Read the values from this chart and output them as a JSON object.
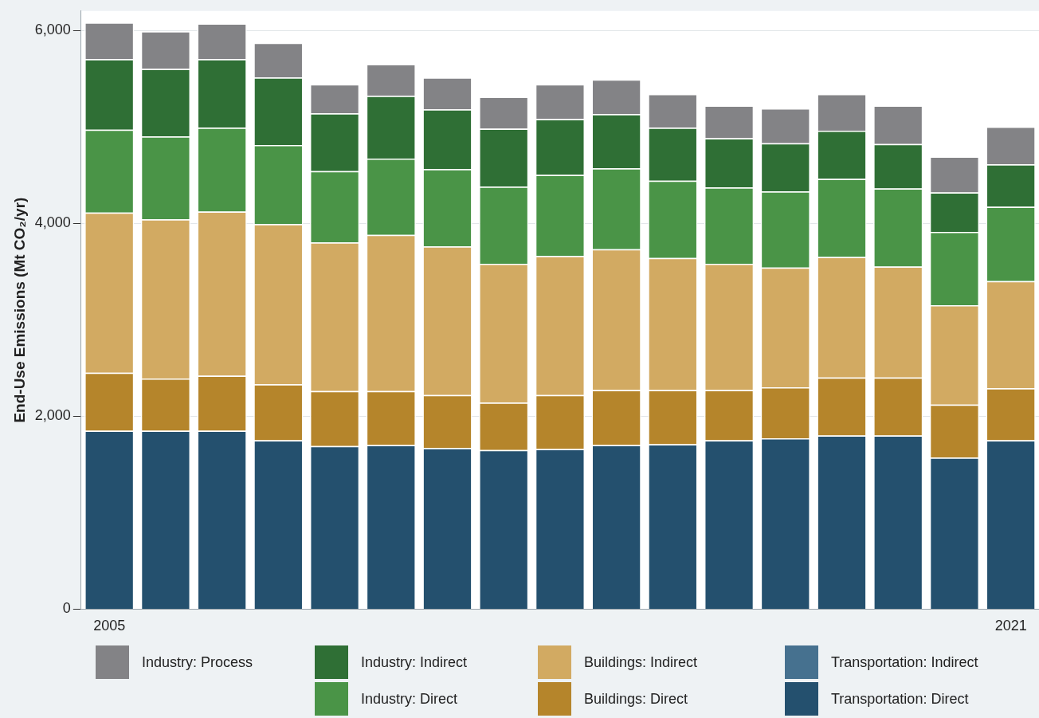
{
  "chart_data": {
    "type": "bar",
    "stacked": true,
    "ylabel": "End-Use Emissions (Mt CO₂/yr)",
    "categories": [
      "2005",
      null,
      null,
      null,
      null,
      null,
      null,
      null,
      null,
      null,
      null,
      null,
      null,
      null,
      null,
      null,
      "2021"
    ],
    "ylim": [
      0,
      6200
    ],
    "yticks": [
      0,
      {
        "value": 2000,
        "label": "2,000"
      },
      {
        "value": 4000,
        "label": "4,000"
      },
      {
        "value": 6000,
        "label": "6,000"
      }
    ],
    "grid": "y",
    "legend": "bottom",
    "series": [
      {
        "name": "Transportation: Direct",
        "color": "#24506e",
        "values": [
          1850,
          1850,
          1850,
          1750,
          1690,
          1700,
          1670,
          1650,
          1660,
          1700,
          1710,
          1750,
          1770,
          1800,
          1800,
          1570,
          1750
        ]
      },
      {
        "name": "Transportation: Indirect",
        "color": "#46718f",
        "values": [
          0,
          0,
          0,
          0,
          0,
          0,
          0,
          0,
          0,
          0,
          0,
          0,
          0,
          0,
          0,
          0,
          0
        ]
      },
      {
        "name": "Buildings: Direct",
        "color": "#b5852b",
        "values": [
          600,
          540,
          570,
          580,
          570,
          560,
          550,
          490,
          560,
          570,
          560,
          520,
          530,
          600,
          600,
          550,
          540
        ]
      },
      {
        "name": "Buildings: Indirect",
        "color": "#d2aa62",
        "values": [
          1660,
          1650,
          1700,
          1660,
          1540,
          1620,
          1540,
          1440,
          1440,
          1460,
          1370,
          1310,
          1240,
          1250,
          1150,
          1030,
          1110
        ]
      },
      {
        "name": "Industry: Direct",
        "color": "#4a9447",
        "values": [
          860,
          860,
          870,
          820,
          740,
          790,
          800,
          800,
          840,
          840,
          800,
          790,
          790,
          810,
          810,
          760,
          770
        ]
      },
      {
        "name": "Industry: Indirect",
        "color": "#2f6f35",
        "values": [
          730,
          700,
          710,
          700,
          600,
          650,
          620,
          600,
          580,
          560,
          550,
          510,
          500,
          500,
          460,
          410,
          440
        ]
      },
      {
        "name": "Industry: Process",
        "color": "#838386",
        "values": [
          380,
          390,
          370,
          360,
          300,
          330,
          330,
          330,
          360,
          360,
          350,
          340,
          360,
          380,
          400,
          370,
          390
        ]
      }
    ]
  }
}
